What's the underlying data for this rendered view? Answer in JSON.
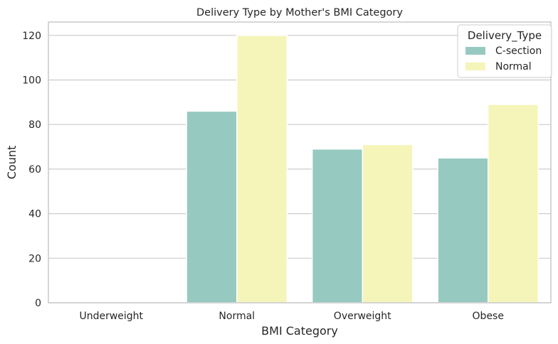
{
  "chart_data": {
    "type": "bar",
    "title": "Delivery Type by Mother's BMI Category",
    "xlabel": "BMI Category",
    "ylabel": "Count",
    "categories": [
      "Underweight",
      "Normal",
      "Overweight",
      "Obese"
    ],
    "series": [
      {
        "name": "C-section",
        "values": [
          0,
          86,
          69,
          65
        ],
        "color": "#96cac0"
      },
      {
        "name": "Normal",
        "values": [
          0,
          120,
          71,
          89
        ],
        "color": "#f6f5b9"
      }
    ],
    "ylim": [
      0,
      126
    ],
    "yticks": [
      0,
      20,
      40,
      60,
      80,
      100,
      120
    ],
    "grid": true,
    "legend": {
      "title": "Delivery_Type",
      "placement": "top-right"
    }
  }
}
